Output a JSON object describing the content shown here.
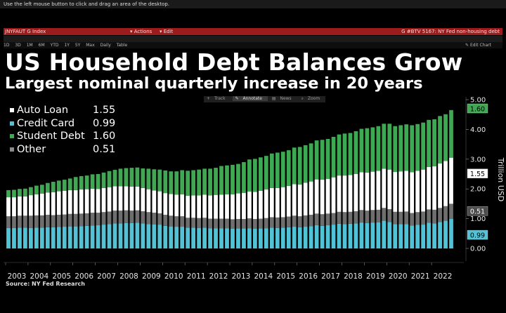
{
  "window": {
    "hint": "Use the left mouse button to click and drag an area of the desktop.",
    "ticker": "JNYFAUT G Index",
    "actions_label": "Actions",
    "edit_label": "Edit",
    "chart_id": "G #BTV 5167: NY Fed non-housing debt",
    "ranges": [
      "1D",
      "3D",
      "1M",
      "6M",
      "YTD",
      "1Y",
      "5Y",
      "Max",
      "Daily",
      "Table"
    ],
    "edit_chart": "Edit Chart"
  },
  "heading": {
    "title": "US Household Debt Balances Grow",
    "subtitle": "Largest nominal quarterly increase in 20 years"
  },
  "toolbar": {
    "items": [
      "Track",
      "Annotate",
      "News",
      "Zoom"
    ]
  },
  "colors": {
    "auto_loan": "#ffffff",
    "credit_card": "#52c3d6",
    "student_debt": "#3fa852",
    "other": "#6e6e6e"
  },
  "legend": [
    {
      "name": "Auto Loan",
      "value": "1.55",
      "color": "#ffffff"
    },
    {
      "name": "Credit Card",
      "value": "0.99",
      "color": "#52c3d6"
    },
    {
      "name": "Student Debt",
      "value": "1.60",
      "color": "#3fa852"
    },
    {
      "name": "Other",
      "value": "0.51",
      "color": "#8a8a8a"
    }
  ],
  "source": "Source: NY Fed Research",
  "chart_data": {
    "type": "bar",
    "stacked": true,
    "ylabel": "Trillion USD",
    "ylim": [
      0,
      5
    ],
    "yticks": [
      "0.00",
      "1.00",
      "2.00",
      "3.00",
      "4.00",
      "5.00"
    ],
    "xticks": [
      "2003",
      "2004",
      "2005",
      "2006",
      "2007",
      "2008",
      "2009",
      "2010",
      "2011",
      "2012",
      "2013",
      "2014",
      "2015",
      "2016",
      "2017",
      "2018",
      "2019",
      "2020",
      "2021",
      "2022"
    ],
    "last_value_labels": [
      {
        "series": "Student Debt",
        "text": "1.60"
      },
      {
        "series": "Auto Loan",
        "text": "1.55"
      },
      {
        "series": "Other",
        "text": "0.51"
      },
      {
        "series": "Credit Card",
        "text": "0.99"
      }
    ],
    "categories": [
      "2003Q1",
      "2003Q2",
      "2003Q3",
      "2003Q4",
      "2004Q1",
      "2004Q2",
      "2004Q3",
      "2004Q4",
      "2005Q1",
      "2005Q2",
      "2005Q3",
      "2005Q4",
      "2006Q1",
      "2006Q2",
      "2006Q3",
      "2006Q4",
      "2007Q1",
      "2007Q2",
      "2007Q3",
      "2007Q4",
      "2008Q1",
      "2008Q2",
      "2008Q3",
      "2008Q4",
      "2009Q1",
      "2009Q2",
      "2009Q3",
      "2009Q4",
      "2010Q1",
      "2010Q2",
      "2010Q3",
      "2010Q4",
      "2011Q1",
      "2011Q2",
      "2011Q3",
      "2011Q4",
      "2012Q1",
      "2012Q2",
      "2012Q3",
      "2012Q4",
      "2013Q1",
      "2013Q2",
      "2013Q3",
      "2013Q4",
      "2014Q1",
      "2014Q2",
      "2014Q3",
      "2014Q4",
      "2015Q1",
      "2015Q2",
      "2015Q3",
      "2015Q4",
      "2016Q1",
      "2016Q2",
      "2016Q3",
      "2016Q4",
      "2017Q1",
      "2017Q2",
      "2017Q3",
      "2017Q4",
      "2018Q1",
      "2018Q2",
      "2018Q3",
      "2018Q4",
      "2019Q1",
      "2019Q2",
      "2019Q3",
      "2019Q4",
      "2020Q1",
      "2020Q2",
      "2020Q3",
      "2020Q4",
      "2021Q1",
      "2021Q2",
      "2021Q3",
      "2021Q4",
      "2022Q1",
      "2022Q2",
      "2022Q3",
      "2022Q4"
    ],
    "series": [
      {
        "name": "Credit Card",
        "values": [
          0.69,
          0.69,
          0.7,
          0.7,
          0.69,
          0.7,
          0.7,
          0.71,
          0.71,
          0.72,
          0.73,
          0.74,
          0.74,
          0.75,
          0.76,
          0.77,
          0.78,
          0.8,
          0.82,
          0.84,
          0.84,
          0.85,
          0.85,
          0.86,
          0.84,
          0.82,
          0.81,
          0.8,
          0.76,
          0.74,
          0.73,
          0.73,
          0.7,
          0.7,
          0.69,
          0.7,
          0.68,
          0.68,
          0.68,
          0.68,
          0.66,
          0.67,
          0.67,
          0.68,
          0.66,
          0.67,
          0.68,
          0.7,
          0.69,
          0.7,
          0.71,
          0.73,
          0.71,
          0.73,
          0.75,
          0.78,
          0.76,
          0.78,
          0.8,
          0.83,
          0.82,
          0.83,
          0.84,
          0.87,
          0.85,
          0.87,
          0.88,
          0.93,
          0.89,
          0.82,
          0.82,
          0.82,
          0.77,
          0.79,
          0.8,
          0.86,
          0.84,
          0.89,
          0.93,
          0.99
        ]
      },
      {
        "name": "Other",
        "values": [
          0.39,
          0.39,
          0.4,
          0.4,
          0.41,
          0.41,
          0.41,
          0.42,
          0.41,
          0.41,
          0.41,
          0.42,
          0.42,
          0.42,
          0.42,
          0.43,
          0.42,
          0.42,
          0.42,
          0.43,
          0.43,
          0.43,
          0.42,
          0.42,
          0.41,
          0.4,
          0.39,
          0.38,
          0.37,
          0.36,
          0.35,
          0.35,
          0.33,
          0.33,
          0.33,
          0.33,
          0.32,
          0.32,
          0.32,
          0.32,
          0.32,
          0.32,
          0.32,
          0.33,
          0.33,
          0.33,
          0.34,
          0.35,
          0.35,
          0.35,
          0.36,
          0.37,
          0.37,
          0.38,
          0.38,
          0.39,
          0.39,
          0.39,
          0.39,
          0.4,
          0.4,
          0.4,
          0.41,
          0.42,
          0.42,
          0.42,
          0.42,
          0.43,
          0.43,
          0.41,
          0.41,
          0.42,
          0.42,
          0.43,
          0.44,
          0.45,
          0.46,
          0.47,
          0.49,
          0.51
        ]
      },
      {
        "name": "Auto Loan",
        "values": [
          0.64,
          0.64,
          0.65,
          0.65,
          0.69,
          0.71,
          0.73,
          0.75,
          0.77,
          0.79,
          0.8,
          0.8,
          0.8,
          0.81,
          0.81,
          0.81,
          0.8,
          0.81,
          0.82,
          0.82,
          0.82,
          0.81,
          0.81,
          0.8,
          0.78,
          0.77,
          0.75,
          0.74,
          0.73,
          0.73,
          0.73,
          0.74,
          0.74,
          0.75,
          0.76,
          0.78,
          0.78,
          0.8,
          0.81,
          0.82,
          0.84,
          0.86,
          0.88,
          0.9,
          0.91,
          0.94,
          0.96,
          0.98,
          0.99,
          1.01,
          1.03,
          1.06,
          1.07,
          1.1,
          1.12,
          1.15,
          1.16,
          1.17,
          1.2,
          1.22,
          1.23,
          1.24,
          1.25,
          1.27,
          1.28,
          1.29,
          1.31,
          1.32,
          1.33,
          1.34,
          1.36,
          1.37,
          1.37,
          1.39,
          1.41,
          1.43,
          1.46,
          1.5,
          1.52,
          1.55
        ]
      },
      {
        "name": "Student Debt",
        "values": [
          0.24,
          0.25,
          0.25,
          0.26,
          0.27,
          0.29,
          0.3,
          0.32,
          0.35,
          0.36,
          0.37,
          0.39,
          0.44,
          0.45,
          0.46,
          0.48,
          0.5,
          0.52,
          0.54,
          0.55,
          0.59,
          0.61,
          0.63,
          0.64,
          0.66,
          0.69,
          0.71,
          0.73,
          0.76,
          0.76,
          0.78,
          0.81,
          0.84,
          0.85,
          0.87,
          0.87,
          0.9,
          0.91,
          0.96,
          0.97,
          0.99,
          0.99,
          1.03,
          1.08,
          1.11,
          1.12,
          1.13,
          1.16,
          1.19,
          1.19,
          1.2,
          1.23,
          1.26,
          1.26,
          1.28,
          1.31,
          1.34,
          1.34,
          1.36,
          1.38,
          1.41,
          1.41,
          1.44,
          1.46,
          1.49,
          1.49,
          1.5,
          1.51,
          1.54,
          1.54,
          1.55,
          1.56,
          1.58,
          1.57,
          1.58,
          1.58,
          1.58,
          1.59,
          1.57,
          1.6
        ]
      }
    ]
  }
}
